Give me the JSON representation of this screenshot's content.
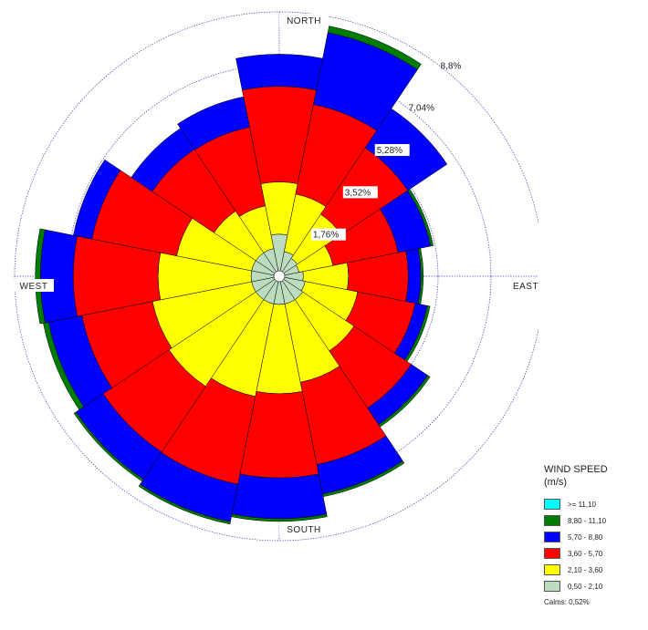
{
  "chart_data": {
    "type": "wind-rose",
    "title": "",
    "directions": {
      "north": "NORTH",
      "east": "EAST",
      "south": "SOUTH",
      "west": "WEST"
    },
    "ring_values": [
      1.76,
      3.52,
      5.28,
      7.04,
      8.8
    ],
    "ring_labels": [
      "1,76%",
      "3,52%",
      "5,28%",
      "7,04%",
      "8,8%"
    ],
    "sectors": 16,
    "sector_start_bearing": 0,
    "speed_bins": [
      {
        "label": ">= 11,10",
        "color": "#00ffff"
      },
      {
        "label": "8,80 - 11,10",
        "color": "#007d00"
      },
      {
        "label": "5,70 - 8,80",
        "color": "#0000ff"
      },
      {
        "label": "3,60 - 5,70",
        "color": "#ff0000"
      },
      {
        "label": "2,10 - 3,60",
        "color": "#ffff00"
      },
      {
        "label": "0,50 - 2,10",
        "color": "#bcdcc0"
      }
    ],
    "cumulative_frequencies": [
      [
        1.4,
        3.14,
        6.32,
        7.39,
        7.39,
        7.39
      ],
      [
        0.84,
        2.79,
        5.83,
        8.27,
        8.49,
        8.49
      ],
      [
        0.72,
        2.48,
        5.14,
        6.71,
        6.71,
        6.71
      ],
      [
        0.67,
        1.82,
        4.03,
        5.13,
        5.22,
        5.22
      ],
      [
        0.8,
        2.3,
        4.29,
        4.71,
        4.79,
        4.79
      ],
      [
        0.88,
        2.66,
        4.61,
        5.02,
        5.11,
        5.11
      ],
      [
        0.94,
        2.99,
        5.28,
        5.94,
        6.03,
        6.03
      ],
      [
        0.94,
        3.6,
        6.39,
        7.39,
        7.48,
        7.48
      ],
      [
        0.94,
        3.91,
        6.71,
        8.07,
        8.16,
        8.16
      ],
      [
        0.94,
        4.08,
        7.06,
        8.33,
        8.41,
        8.41
      ],
      [
        0.94,
        4.41,
        7.04,
        8.13,
        8.21,
        8.21
      ],
      [
        0.94,
        4.3,
        6.69,
        7.82,
        8.0,
        8.0
      ],
      [
        0.94,
        4.03,
        6.85,
        7.94,
        8.11,
        8.11
      ],
      [
        0.94,
        3.48,
        6.35,
        6.98,
        6.98,
        6.98
      ],
      [
        0.94,
        2.61,
        5.08,
        5.92,
        5.92,
        5.92
      ],
      [
        0.94,
        2.39,
        5.06,
        6.09,
        6.09,
        6.09
      ]
    ],
    "legend_title": "WIND SPEED\n(m/s)",
    "calms": "Calms: 0,52%",
    "colors": {
      "ring": "#3c3cb4",
      "outline": "#000000",
      "label_background": "#ffffff"
    }
  }
}
